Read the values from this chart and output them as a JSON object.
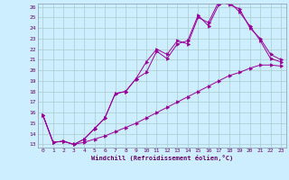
{
  "title": "",
  "xlabel": "Windchill (Refroidissement éolien,°C)",
  "bg_color": "#cceeff",
  "line_color": "#990099",
  "grid_color": "#aacccc",
  "xlim": [
    -0.5,
    23.5
  ],
  "ylim": [
    12.7,
    26.3
  ],
  "xticks": [
    0,
    1,
    2,
    3,
    4,
    5,
    6,
    7,
    8,
    9,
    10,
    11,
    12,
    13,
    14,
    15,
    16,
    17,
    18,
    19,
    20,
    21,
    22,
    23
  ],
  "yticks": [
    13,
    14,
    15,
    16,
    17,
    18,
    19,
    20,
    21,
    22,
    23,
    24,
    25,
    26
  ],
  "line1_x": [
    0,
    1,
    2,
    3,
    4,
    5,
    6,
    7,
    8,
    9,
    10,
    11,
    12,
    13,
    14,
    15,
    16,
    17,
    18,
    19,
    20,
    21,
    22,
    23
  ],
  "line1_y": [
    15.8,
    13.2,
    13.3,
    13.0,
    13.2,
    13.5,
    13.8,
    14.2,
    14.6,
    15.0,
    15.5,
    16.0,
    16.5,
    17.0,
    17.5,
    18.0,
    18.5,
    19.0,
    19.5,
    19.8,
    20.2,
    20.5,
    20.5,
    20.4
  ],
  "line2_x": [
    0,
    1,
    2,
    3,
    4,
    5,
    6,
    7,
    8,
    9,
    10,
    11,
    12,
    13,
    14,
    15,
    16,
    17,
    18,
    19,
    20,
    21,
    22,
    23
  ],
  "line2_y": [
    15.8,
    13.2,
    13.3,
    13.0,
    13.5,
    14.5,
    15.5,
    17.8,
    18.0,
    19.2,
    19.8,
    21.8,
    21.1,
    22.5,
    22.8,
    25.2,
    24.2,
    26.2,
    26.5,
    25.5,
    24.2,
    22.8,
    21.1,
    20.8
  ],
  "line3_x": [
    0,
    1,
    2,
    3,
    4,
    5,
    6,
    7,
    8,
    9,
    10,
    11,
    12,
    13,
    14,
    15,
    16,
    17,
    18,
    19,
    20,
    21,
    22,
    23
  ],
  "line3_y": [
    15.8,
    13.2,
    13.3,
    13.0,
    13.5,
    14.5,
    15.5,
    17.8,
    18.0,
    19.2,
    20.8,
    22.0,
    21.5,
    22.8,
    22.5,
    25.0,
    24.5,
    26.5,
    26.2,
    25.8,
    24.0,
    23.0,
    21.5,
    21.0
  ],
  "tick_color": "#660066",
  "label_fontsize": 4.5,
  "xlabel_fontsize": 5.0
}
